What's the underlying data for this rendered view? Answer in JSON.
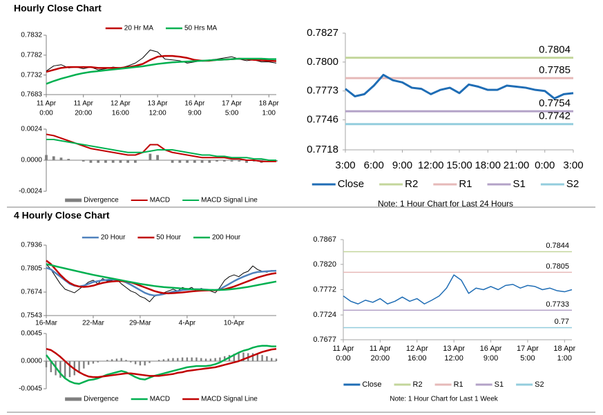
{
  "sections": [
    "Hourly Close Chart",
    "4 Hourly Close Chart"
  ],
  "chart_data": [
    {
      "type": "line",
      "legend": "top",
      "xlim": [
        0,
        31
      ],
      "ylim": [
        0.7683,
        0.7832
      ],
      "yticks": [
        0.7683,
        0.7732,
        0.7782,
        0.7832
      ],
      "xticks": [
        {
          "value": 0,
          "label": [
            "11 Apr",
            "0:00"
          ]
        },
        {
          "value": 5,
          "label": [
            "11 Apr",
            "20:00"
          ]
        },
        {
          "value": 10,
          "label": [
            "12 Apr",
            "16:00"
          ]
        },
        {
          "value": 15,
          "label": [
            "13 Apr",
            "12:00"
          ]
        },
        {
          "value": 20,
          "label": [
            "16 Apr",
            "9:00"
          ]
        },
        {
          "value": 25,
          "label": [
            "17 Apr",
            "5:00"
          ]
        },
        {
          "value": 30,
          "label": [
            "18 Apr",
            "1:00"
          ]
        }
      ],
      "series": [
        {
          "color": "#000000",
          "line_width": 1,
          "values": [
            0.7742,
            0.7755,
            0.7758,
            0.775,
            0.7752,
            0.7748,
            0.7752,
            0.7745,
            0.7748,
            0.7752,
            0.775,
            0.7755,
            0.7762,
            0.7775,
            0.7795,
            0.779,
            0.7772,
            0.777,
            0.7768,
            0.7762,
            0.7765,
            0.7768,
            0.777,
            0.7772,
            0.7775,
            0.7778,
            0.7772,
            0.7768,
            0.777,
            0.7765,
            0.7765,
            0.7762
          ]
        },
        {
          "name": "20 Hr MA",
          "color": "#c00000",
          "line_width": 2.5,
          "values": [
            0.774,
            0.7745,
            0.775,
            0.7752,
            0.7752,
            0.7752,
            0.7752,
            0.775,
            0.775,
            0.775,
            0.775,
            0.7752,
            0.7755,
            0.776,
            0.777,
            0.7778,
            0.778,
            0.778,
            0.7778,
            0.7775,
            0.777,
            0.7768,
            0.7768,
            0.777,
            0.7771,
            0.7772,
            0.7773,
            0.7772,
            0.777,
            0.7769,
            0.7768,
            0.7767
          ]
        },
        {
          "name": "50 Hrs MA",
          "color": "#00b050",
          "line_width": 2.5,
          "values": [
            0.771,
            0.7717,
            0.7723,
            0.7728,
            0.7733,
            0.7737,
            0.774,
            0.7742,
            0.7744,
            0.7746,
            0.7748,
            0.775,
            0.7752,
            0.7754,
            0.7757,
            0.776,
            0.7762,
            0.7764,
            0.7765,
            0.7766,
            0.7767,
            0.7768,
            0.7769,
            0.777,
            0.7771,
            0.7772,
            0.7773,
            0.7773,
            0.7773,
            0.7773,
            0.7772,
            0.7772
          ]
        }
      ]
    },
    {
      "type": "line",
      "legend": "bottom",
      "xlim": [
        0,
        31
      ],
      "ylim": [
        -0.0024,
        0.0024
      ],
      "yticks": [
        -0.0024,
        {
          "value": 0,
          "label": "0.0000"
        },
        0.0024
      ],
      "series": [
        {
          "name": "Divergence",
          "color": "#7f7f7f",
          "kind": "bar",
          "values": [
            0.0004,
            0.0003,
            0.0002,
            0.0001,
            0,
            -0.0001,
            -0.0002,
            -0.0002,
            -0.0002,
            -0.0002,
            -0.0002,
            -0.0002,
            -0.0002,
            0,
            0.0005,
            0.0004,
            0,
            -0.0002,
            -0.0002,
            -0.0002,
            -0.0002,
            -0.0002,
            -0.0002,
            -0.0001,
            -0.0001,
            -0.0001,
            -0.0001,
            -0.0002,
            -0.0001,
            -0.0002,
            -0.0001,
            -0.0001
          ]
        },
        {
          "name": "MACD",
          "color": "#c00000",
          "line_width": 2,
          "values": [
            0.002,
            0.0019,
            0.0017,
            0.0015,
            0.0013,
            0.0011,
            0.0009,
            0.0008,
            0.0007,
            0.0006,
            0.0005,
            0.0004,
            0.0004,
            0.0006,
            0.0012,
            0.0012,
            0.0008,
            0.0006,
            0.0005,
            0.0004,
            0.0003,
            0.0002,
            0.0002,
            0.0002,
            0.0002,
            0.0001,
            0.0001,
            0,
            0,
            -0.0001,
            -0.0001,
            -0.0001
          ]
        },
        {
          "name": "MACD Signal Line",
          "color": "#00b050",
          "line_width": 2,
          "values": [
            0.0016,
            0.0016,
            0.0015,
            0.0014,
            0.0013,
            0.0012,
            0.0011,
            0.001,
            0.0009,
            0.0008,
            0.0007,
            0.0006,
            0.0006,
            0.0006,
            0.0007,
            0.0008,
            0.0008,
            0.0008,
            0.0007,
            0.0006,
            0.0005,
            0.0004,
            0.0004,
            0.0003,
            0.0003,
            0.0002,
            0.0002,
            0.0002,
            0.0001,
            0.0001,
            0,
            0
          ]
        }
      ]
    },
    {
      "type": "line",
      "legend": "bottom",
      "note": "Note: 1 Hour Chart for Last 24 Hours",
      "xlim": [
        0,
        24
      ],
      "ylim": [
        0.7718,
        0.7827
      ],
      "yticks": [
        0.7718,
        0.7746,
        0.7773,
        {
          "value": 0.78,
          "label": "0.7800"
        },
        0.7827
      ],
      "xticks": [
        {
          "value": 0,
          "label": "3:00"
        },
        {
          "value": 3,
          "label": "6:00"
        },
        {
          "value": 6,
          "label": "9:00"
        },
        {
          "value": 9,
          "label": "12:00"
        },
        {
          "value": 12,
          "label": "15:00"
        },
        {
          "value": 15,
          "label": "18:00"
        },
        {
          "value": 18,
          "label": "21:00"
        },
        {
          "value": 21,
          "label": "0:00"
        },
        {
          "value": 24,
          "label": "3:00"
        }
      ],
      "series": [
        {
          "name": "Close",
          "color": "#1f6db5",
          "line_width": 3,
          "values": [
            0.7775,
            0.7768,
            0.777,
            0.7778,
            0.7788,
            0.7783,
            0.7781,
            0.7776,
            0.7775,
            0.777,
            0.7774,
            0.7776,
            0.7771,
            0.7779,
            0.7777,
            0.7774,
            0.7774,
            0.7778,
            0.7777,
            0.7776,
            0.7774,
            0.7773,
            0.7766,
            0.777,
            0.7771
          ]
        },
        {
          "name": "R2",
          "color": "#c3d69b",
          "line_width": 3,
          "value": 0.7804
        },
        {
          "name": "R1",
          "color": "#e6b9b8",
          "line_width": 3,
          "value": 0.7785
        },
        {
          "name": "S1",
          "color": "#b3a2c7",
          "line_width": 3,
          "value": 0.7754
        },
        {
          "name": "S2",
          "color": "#93cddd",
          "line_width": 3,
          "value": 0.7742
        }
      ]
    },
    {
      "type": "line",
      "legend": "top",
      "xlim": [
        0,
        49
      ],
      "ylim": [
        0.7543,
        0.7936
      ],
      "yticks": [
        0.7543,
        0.7674,
        0.7805,
        0.7936
      ],
      "xticks": [
        {
          "value": 0,
          "label": "16-Mar"
        },
        {
          "value": 10,
          "label": "22-Mar"
        },
        {
          "value": 20,
          "label": "29-Mar"
        },
        {
          "value": 30,
          "label": "4-Apr"
        },
        {
          "value": 40,
          "label": "10-Apr"
        }
      ],
      "series": [
        {
          "color": "#000000",
          "line_width": 1,
          "values": [
            0.783,
            0.78,
            0.776,
            0.772,
            0.769,
            0.768,
            0.767,
            0.769,
            0.771,
            0.773,
            0.774,
            0.772,
            0.775,
            0.7735,
            0.774,
            0.7745,
            0.772,
            0.77,
            0.768,
            0.767,
            0.765,
            0.764,
            0.762,
            0.765,
            0.766,
            0.767,
            0.768,
            0.769,
            0.768,
            0.77,
            0.769,
            0.77,
            0.768,
            0.7695,
            0.7685,
            0.768,
            0.767,
            0.77,
            0.774,
            0.776,
            0.777,
            0.776,
            0.778,
            0.779,
            0.782,
            0.78,
            0.779,
            0.7785,
            0.7795,
            0.779
          ]
        },
        {
          "name": "20 Hour",
          "color": "#4f81bd",
          "line_width": 2.5,
          "values": [
            0.781,
            0.78,
            0.778,
            0.776,
            0.774,
            0.772,
            0.771,
            0.7705,
            0.771,
            0.772,
            0.773,
            0.7735,
            0.774,
            0.7742,
            0.7745,
            0.7743,
            0.7738,
            0.7728,
            0.7715,
            0.77,
            0.7685,
            0.767,
            0.766,
            0.7655,
            0.7658,
            0.7663,
            0.767,
            0.7676,
            0.768,
            0.7685,
            0.7688,
            0.769,
            0.769,
            0.769,
            0.7688,
            0.7686,
            0.7684,
            0.769,
            0.7705,
            0.772,
            0.7735,
            0.7748,
            0.776,
            0.777,
            0.778,
            0.7786,
            0.7788,
            0.779,
            0.7792,
            0.7793
          ]
        },
        {
          "name": "50 Hour",
          "color": "#c00000",
          "line_width": 2.5,
          "values": [
            0.785,
            0.783,
            0.78,
            0.777,
            0.7745,
            0.7725,
            0.7712,
            0.7705,
            0.7703,
            0.7705,
            0.771,
            0.7718,
            0.7725,
            0.773,
            0.7733,
            0.7735,
            0.7735,
            0.7733,
            0.7728,
            0.772,
            0.771,
            0.77,
            0.769,
            0.768,
            0.7673,
            0.7668,
            0.7667,
            0.7668,
            0.767,
            0.7672,
            0.7675,
            0.7678,
            0.768,
            0.7682,
            0.7683,
            0.7684,
            0.7684,
            0.7686,
            0.769,
            0.7697,
            0.7705,
            0.7715,
            0.7725,
            0.7735,
            0.7745,
            0.7755,
            0.7763,
            0.777,
            0.7776,
            0.778
          ]
        },
        {
          "name": "200 Hour",
          "color": "#00b050",
          "line_width": 2.5,
          "values": [
            0.783,
            0.7825,
            0.7818,
            0.7812,
            0.7806,
            0.78,
            0.7794,
            0.7788,
            0.7782,
            0.7776,
            0.777,
            0.7765,
            0.776,
            0.7755,
            0.775,
            0.7745,
            0.774,
            0.7735,
            0.773,
            0.7725,
            0.772,
            0.7716,
            0.7712,
            0.7708,
            0.7705,
            0.7702,
            0.77,
            0.7698,
            0.7696,
            0.7694,
            0.7692,
            0.769,
            0.7689,
            0.7688,
            0.7687,
            0.7686,
            0.7686,
            0.7686,
            0.7687,
            0.7689,
            0.7692,
            0.7695,
            0.7699,
            0.7703,
            0.7708,
            0.7713,
            0.7718,
            0.7723,
            0.7728,
            0.7733
          ]
        }
      ]
    },
    {
      "type": "line",
      "legend": "bottom",
      "xlim": [
        0,
        49
      ],
      "ylim": [
        -0.0045,
        0.0045
      ],
      "yticks": [
        -0.0045,
        {
          "value": 0,
          "label": "0.0000"
        },
        0.0045
      ],
      "series": [
        {
          "name": "Divergence",
          "color": "#7f7f7f",
          "kind": "bar",
          "values": [
            -0.001,
            -0.0018,
            -0.0023,
            -0.0027,
            -0.0028,
            -0.0026,
            -0.0023,
            -0.0019,
            -0.0012,
            -0.0006,
            -0.0004,
            -0.0002,
            0,
            0.0002,
            0.0003,
            0.0004,
            0.0005,
            0.0002,
            -0.0002,
            -0.0005,
            -0.0007,
            -0.0007,
            -0.0003,
            0,
            0.0002,
            0.0003,
            0.0004,
            0.0005,
            0.0005,
            0.0006,
            0.0006,
            0.0006,
            0.0006,
            0.0005,
            0.0004,
            0.0004,
            0.0005,
            0.0006,
            0.0008,
            0.001,
            0.0012,
            0.0014,
            0.0014,
            0.0013,
            0.0013,
            0.0012,
            0.001,
            0.0008,
            0.0005,
            0.0004
          ]
        },
        {
          "name": "MACD",
          "color": "#00b050",
          "line_width": 2.5,
          "values": [
            0.001,
            0,
            -0.001,
            -0.002,
            -0.0028,
            -0.0033,
            -0.0036,
            -0.0037,
            -0.0034,
            -0.0031,
            -0.003,
            -0.0028,
            -0.0025,
            -0.0022,
            -0.002,
            -0.0018,
            -0.0016,
            -0.0018,
            -0.0022,
            -0.0026,
            -0.0029,
            -0.003,
            -0.0027,
            -0.0024,
            -0.0022,
            -0.002,
            -0.0018,
            -0.0016,
            -0.0014,
            -0.0012,
            -0.001,
            -0.0009,
            -0.0008,
            -0.0008,
            -0.0008,
            -0.0007,
            -0.0005,
            -0.0002,
            0.0002,
            0.0006,
            0.001,
            0.0014,
            0.0017,
            0.0019,
            0.0022,
            0.0024,
            0.0025,
            0.0025,
            0.0024,
            0.0024
          ]
        },
        {
          "name": "MACD Signal Line",
          "color": "#c00000",
          "line_width": 2.5,
          "values": [
            0.002,
            0.0018,
            0.0013,
            0.0007,
            0,
            -0.0007,
            -0.0013,
            -0.0018,
            -0.0022,
            -0.0025,
            -0.0026,
            -0.0026,
            -0.0025,
            -0.0024,
            -0.0023,
            -0.0022,
            -0.0021,
            -0.002,
            -0.002,
            -0.0021,
            -0.0022,
            -0.0023,
            -0.0024,
            -0.0024,
            -0.0024,
            -0.0023,
            -0.0022,
            -0.0021,
            -0.0019,
            -0.0018,
            -0.0016,
            -0.0015,
            -0.0014,
            -0.0013,
            -0.0012,
            -0.0011,
            -0.001,
            -0.0008,
            -0.0006,
            -0.0004,
            -0.0002,
            0,
            0.0003,
            0.0006,
            0.0009,
            0.0012,
            0.0015,
            0.0017,
            0.0019,
            0.002
          ]
        }
      ]
    },
    {
      "type": "line",
      "legend": "bottom",
      "note": "Note: 1 Hour Chart for Last 1 Week",
      "xlim": [
        0,
        31
      ],
      "ylim": [
        0.7677,
        0.7867
      ],
      "yticks": [
        0.7677,
        0.7724,
        0.7772,
        {
          "value": 0.782,
          "label": "0.7820"
        },
        0.7867
      ],
      "xticks": [
        {
          "value": 0,
          "label": [
            "11 Apr",
            "0:00"
          ]
        },
        {
          "value": 5,
          "label": [
            "11 Apr",
            "20:00"
          ]
        },
        {
          "value": 10,
          "label": [
            "12 Apr",
            "16:00"
          ]
        },
        {
          "value": 15,
          "label": [
            "13 Apr",
            "12:00"
          ]
        },
        {
          "value": 20,
          "label": [
            "16 Apr",
            "9:00"
          ]
        },
        {
          "value": 25,
          "label": [
            "17 Apr",
            "5:00"
          ]
        },
        {
          "value": 30,
          "label": [
            "18 Apr",
            "1:00"
          ]
        }
      ],
      "series": [
        {
          "name": "Close",
          "color": "#1f6db5",
          "line_width": 1.5,
          "values": [
            0.776,
            0.775,
            0.7745,
            0.7752,
            0.7748,
            0.7755,
            0.7745,
            0.775,
            0.7758,
            0.775,
            0.7755,
            0.7745,
            0.7752,
            0.776,
            0.7775,
            0.78,
            0.779,
            0.7765,
            0.7775,
            0.7772,
            0.7778,
            0.7772,
            0.778,
            0.7782,
            0.7775,
            0.778,
            0.7778,
            0.7772,
            0.7775,
            0.777,
            0.7768,
            0.7772
          ]
        },
        {
          "name": "R2",
          "color": "#c3d69b",
          "line_width": 1.5,
          "value": 0.7844
        },
        {
          "name": "R1",
          "color": "#e6b9b8",
          "line_width": 1.5,
          "value": 0.7805
        },
        {
          "name": "S1",
          "color": "#b3a2c7",
          "line_width": 1.5,
          "value": 0.7733
        },
        {
          "name": "S2",
          "color": "#93cddd",
          "line_width": 1.5,
          "value": 0.77
        }
      ]
    }
  ]
}
